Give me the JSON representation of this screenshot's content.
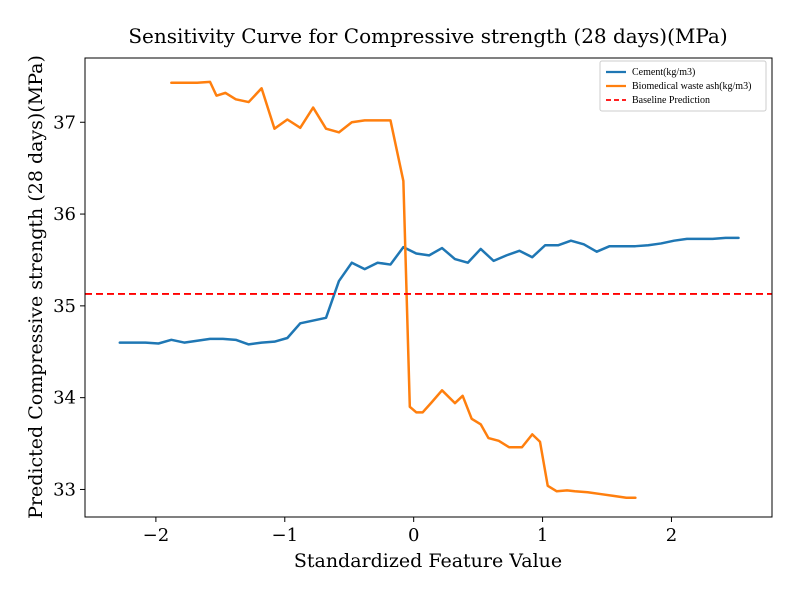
{
  "chart_data": {
    "type": "line",
    "title": "Sensitivity Curve for Compressive strength (28 days)(MPa)",
    "xlabel": "Standardized Feature Value",
    "ylabel": "Predicted Compressive strength (28 days)(MPa)",
    "xlim": [
      -2.55,
      2.78
    ],
    "ylim": [
      32.7,
      37.7
    ],
    "xticks": [
      -2,
      -1,
      0,
      1,
      2
    ],
    "xtick_labels": [
      "−2",
      "−1",
      "0",
      "1",
      "2"
    ],
    "yticks": [
      33,
      34,
      35,
      36,
      37
    ],
    "ytick_labels": [
      "33",
      "34",
      "35",
      "36",
      "37"
    ],
    "grid": false,
    "legend_position": "top-right",
    "series": [
      {
        "name": "Cement(kg/m3)",
        "color": "#1f77b4",
        "x": [
          -2.28,
          -2.18,
          -2.08,
          -1.98,
          -1.88,
          -1.78,
          -1.68,
          -1.58,
          -1.48,
          -1.38,
          -1.28,
          -1.18,
          -1.08,
          -0.98,
          -0.88,
          -0.78,
          -0.68,
          -0.58,
          -0.48,
          -0.38,
          -0.28,
          -0.18,
          -0.08,
          0.02,
          0.12,
          0.22,
          0.32,
          0.42,
          0.52,
          0.62,
          0.72,
          0.82,
          0.92,
          1.02,
          1.12,
          1.22,
          1.32,
          1.42,
          1.52,
          1.62,
          1.72,
          1.82,
          1.92,
          2.02,
          2.12,
          2.22,
          2.32,
          2.42,
          2.52
        ],
        "y": [
          34.6,
          34.6,
          34.6,
          34.59,
          34.63,
          34.6,
          34.62,
          34.64,
          34.64,
          34.63,
          34.58,
          34.6,
          34.61,
          34.65,
          34.81,
          34.84,
          34.87,
          35.27,
          35.47,
          35.4,
          35.47,
          35.45,
          35.64,
          35.57,
          35.55,
          35.63,
          35.51,
          35.47,
          35.62,
          35.49,
          35.55,
          35.6,
          35.53,
          35.66,
          35.66,
          35.71,
          35.67,
          35.59,
          35.65,
          35.65,
          35.65,
          35.66,
          35.68,
          35.71,
          35.73,
          35.73,
          35.73,
          35.74,
          35.74
        ]
      },
      {
        "name": "Biomedical waste ash(kg/m3)",
        "color": "#ff7f0e",
        "x": [
          -1.88,
          -1.78,
          -1.68,
          -1.58,
          -1.53,
          -1.46,
          -1.38,
          -1.28,
          -1.18,
          -1.08,
          -0.98,
          -0.88,
          -0.78,
          -0.68,
          -0.58,
          -0.48,
          -0.38,
          -0.28,
          -0.18,
          -0.08,
          -0.03,
          0.02,
          0.07,
          0.14,
          0.22,
          0.32,
          0.38,
          0.45,
          0.52,
          0.58,
          0.66,
          0.74,
          0.84,
          0.92,
          0.98,
          1.04,
          1.11,
          1.19,
          1.25,
          1.35,
          1.45,
          1.55,
          1.65,
          1.72
        ],
        "y": [
          37.43,
          37.43,
          37.43,
          37.44,
          37.29,
          37.32,
          37.25,
          37.22,
          37.37,
          36.93,
          37.03,
          36.94,
          37.16,
          36.93,
          36.89,
          37.0,
          37.02,
          37.02,
          37.02,
          36.36,
          33.9,
          33.84,
          33.84,
          33.95,
          34.08,
          33.94,
          34.02,
          33.77,
          33.71,
          33.56,
          33.53,
          33.46,
          33.46,
          33.6,
          33.52,
          33.04,
          32.98,
          32.99,
          32.98,
          32.97,
          32.95,
          32.93,
          32.91,
          32.91
        ]
      }
    ],
    "baseline": {
      "name": "Baseline Prediction",
      "value": 35.13,
      "color": "#ff0000"
    }
  }
}
